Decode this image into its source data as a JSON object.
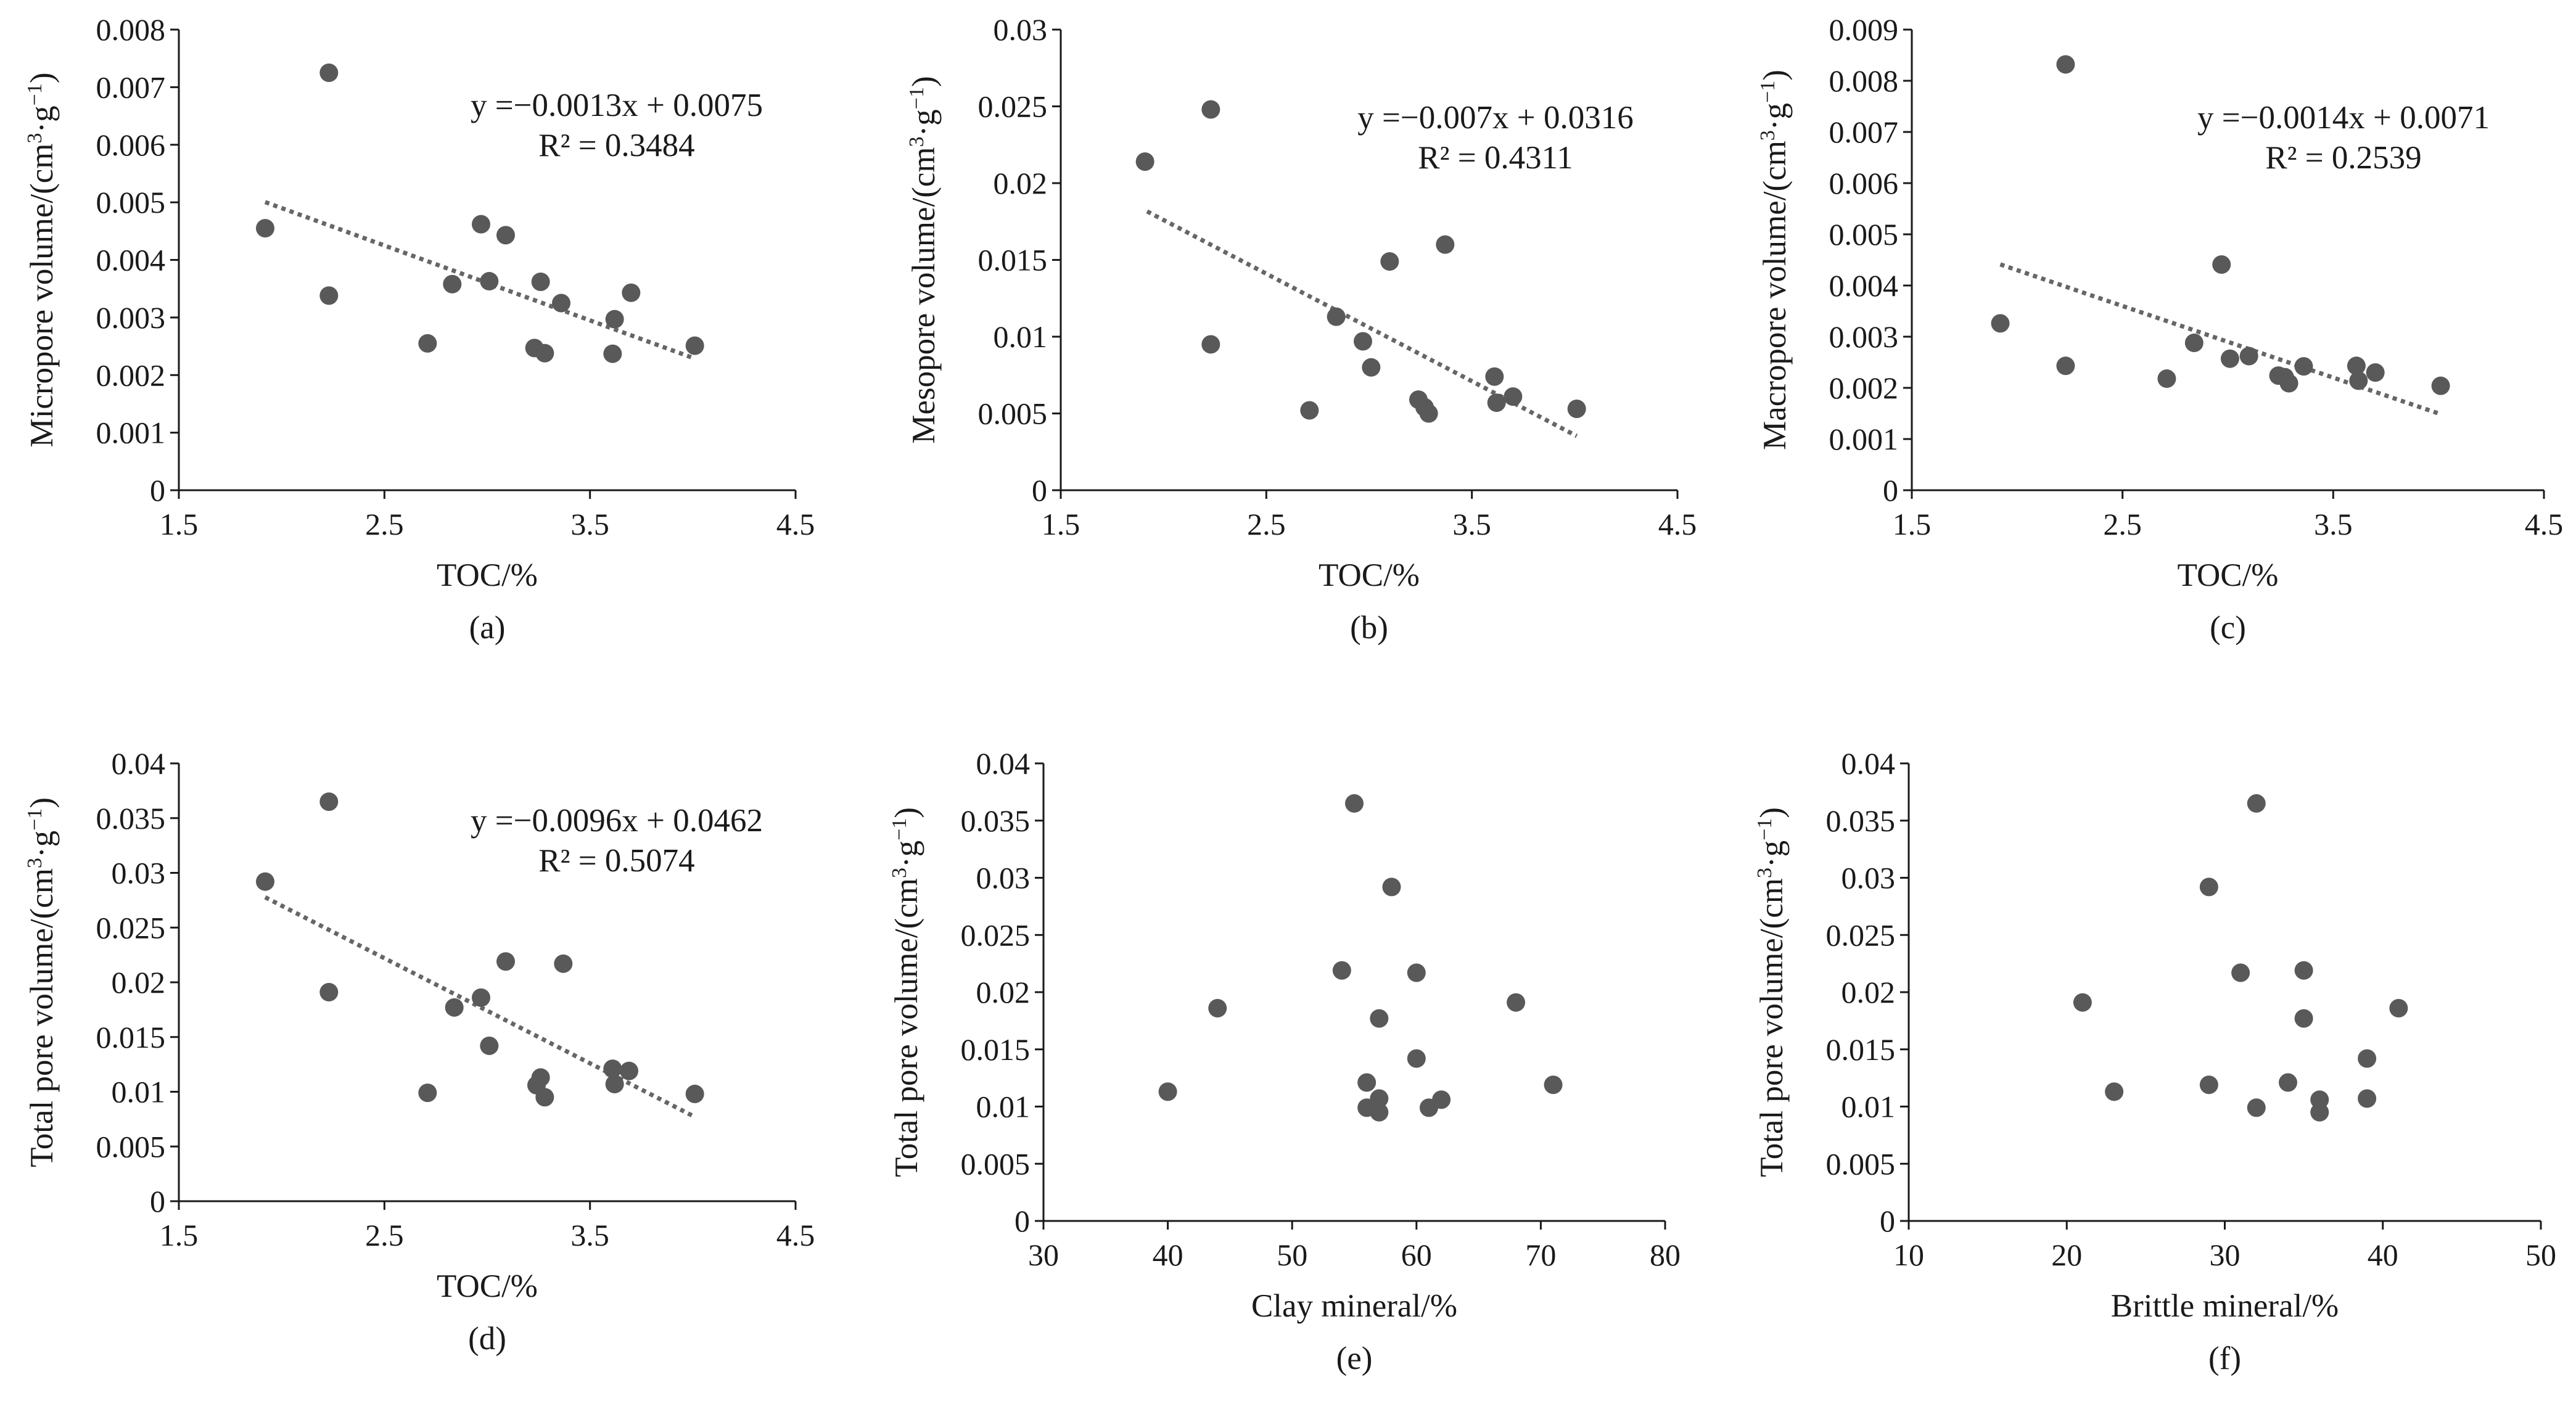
{
  "figure": {
    "background": "#ffffff",
    "point_color": "#595959",
    "trend_color": "#666666"
  },
  "chart_data": [
    {
      "id": "a",
      "type": "scatter",
      "caption": "(a)",
      "xlabel": "TOC/%",
      "ylabel_main": "Micropore volume/(cm",
      "ylabel_sup1": "3",
      "ylabel_mid": "·g",
      "ylabel_sup2": "−1",
      "ylabel_end": ")",
      "xlim": [
        1.5,
        4.5
      ],
      "ylim": [
        0,
        0.008
      ],
      "xticks": [
        "1.5",
        "2.5",
        "3.5",
        "4.5"
      ],
      "xtick_values": [
        1.5,
        2.5,
        3.5,
        4.5
      ],
      "yticks": [
        "0",
        "0.001",
        "0.002",
        "0.003",
        "0.004",
        "0.005",
        "0.006",
        "0.007",
        "0.008"
      ],
      "ytick_values": [
        0,
        0.001,
        0.002,
        0.003,
        0.004,
        0.005,
        0.006,
        0.007,
        0.008
      ],
      "points": [
        [
          1.92,
          0.00455
        ],
        [
          2.23,
          0.00725
        ],
        [
          2.23,
          0.00338
        ],
        [
          2.71,
          0.00255
        ],
        [
          2.83,
          0.00358
        ],
        [
          2.97,
          0.00462
        ],
        [
          3.01,
          0.00363
        ],
        [
          3.09,
          0.00443
        ],
        [
          3.23,
          0.00247
        ],
        [
          3.26,
          0.00362
        ],
        [
          3.28,
          0.00238
        ],
        [
          3.36,
          0.00325
        ],
        [
          3.61,
          0.00237
        ],
        [
          3.62,
          0.00297
        ],
        [
          3.7,
          0.00343
        ],
        [
          4.01,
          0.00251
        ]
      ],
      "trendline": {
        "slope": -0.0013,
        "intercept": 0.0075,
        "x_range": [
          1.92,
          4.01
        ]
      },
      "equation": "y =−0.0013x + 0.0075",
      "r2": "R² = 0.3484"
    },
    {
      "id": "b",
      "type": "scatter",
      "caption": "(b)",
      "xlabel": "TOC/%",
      "ylabel_main": "Mesopore volume/(cm",
      "ylabel_sup1": "3",
      "ylabel_mid": "·g",
      "ylabel_sup2": "−1",
      "ylabel_end": ")",
      "xlim": [
        1.5,
        4.5
      ],
      "ylim": [
        0,
        0.03
      ],
      "xticks": [
        "1.5",
        "2.5",
        "3.5",
        "4.5"
      ],
      "xtick_values": [
        1.5,
        2.5,
        3.5,
        4.5
      ],
      "yticks": [
        "0",
        "0.005",
        "0.01",
        "0.015",
        "0.02",
        "0.025",
        "0.03"
      ],
      "ytick_values": [
        0,
        0.005,
        0.01,
        0.015,
        0.02,
        0.025,
        0.03
      ],
      "points": [
        [
          1.91,
          0.0214
        ],
        [
          2.23,
          0.0248
        ],
        [
          2.23,
          0.0095
        ],
        [
          2.71,
          0.0052
        ],
        [
          2.84,
          0.0113
        ],
        [
          2.97,
          0.0097
        ],
        [
          3.01,
          0.008
        ],
        [
          3.1,
          0.0149
        ],
        [
          3.24,
          0.0059
        ],
        [
          3.27,
          0.0054
        ],
        [
          3.29,
          0.005
        ],
        [
          3.37,
          0.016
        ],
        [
          3.61,
          0.0074
        ],
        [
          3.62,
          0.0057
        ],
        [
          3.7,
          0.0061
        ],
        [
          4.01,
          0.0053
        ]
      ],
      "trendline": {
        "slope": -0.007,
        "intercept": 0.0316,
        "x_range": [
          1.92,
          4.01
        ]
      },
      "equation": "y =−0.007x + 0.0316",
      "r2": "R² = 0.4311"
    },
    {
      "id": "c",
      "type": "scatter",
      "caption": "(c)",
      "xlabel": "TOC/%",
      "ylabel_main": "Macropore volume/(cm",
      "ylabel_sup1": "3",
      "ylabel_mid": "·g",
      "ylabel_sup2": "−1",
      "ylabel_end": ")",
      "xlim": [
        1.5,
        4.5
      ],
      "ylim": [
        0,
        0.009
      ],
      "xticks": [
        "1.5",
        "2.5",
        "3.5",
        "4.5"
      ],
      "xtick_values": [
        1.5,
        2.5,
        3.5,
        4.5
      ],
      "yticks": [
        "0",
        "0.001",
        "0.002",
        "0.003",
        "0.004",
        "0.005",
        "0.006",
        "0.007",
        "0.008",
        "0.009"
      ],
      "ytick_values": [
        0,
        0.001,
        0.002,
        0.003,
        0.004,
        0.005,
        0.006,
        0.007,
        0.008,
        0.009
      ],
      "points": [
        [
          1.92,
          0.00326
        ],
        [
          2.23,
          0.00832
        ],
        [
          2.23,
          0.00243
        ],
        [
          2.71,
          0.00218
        ],
        [
          2.84,
          0.00288
        ],
        [
          2.97,
          0.00441
        ],
        [
          3.01,
          0.00257
        ],
        [
          3.1,
          0.00262
        ],
        [
          3.24,
          0.00224
        ],
        [
          3.27,
          0.00221
        ],
        [
          3.29,
          0.00209
        ],
        [
          3.36,
          0.00242
        ],
        [
          3.61,
          0.00243
        ],
        [
          3.62,
          0.00214
        ],
        [
          3.7,
          0.0023
        ],
        [
          4.01,
          0.00204
        ]
      ],
      "trendline": {
        "slope": -0.0014,
        "intercept": 0.0071,
        "x_range": [
          1.92,
          4.01
        ]
      },
      "equation": "y =−0.0014x + 0.0071",
      "r2": "R² = 0.2539"
    },
    {
      "id": "d",
      "type": "scatter",
      "caption": "(d)",
      "xlabel": "TOC/%",
      "ylabel_main": "Total pore volume/(cm",
      "ylabel_sup1": "3",
      "ylabel_mid": "·g",
      "ylabel_sup2": "−1",
      "ylabel_end": ")",
      "xlim": [
        1.5,
        4.5
      ],
      "ylim": [
        0,
        0.04
      ],
      "xticks": [
        "1.5",
        "2.5",
        "3.5",
        "4.5"
      ],
      "xtick_values": [
        1.5,
        2.5,
        3.5,
        4.5
      ],
      "yticks": [
        "0",
        "0.005",
        "0.01",
        "0.015",
        "0.02",
        "0.025",
        "0.03",
        "0.035",
        "0.04"
      ],
      "ytick_values": [
        0,
        0.005,
        0.01,
        0.015,
        0.02,
        0.025,
        0.03,
        0.035,
        0.04
      ],
      "points": [
        [
          1.92,
          0.0292
        ],
        [
          2.23,
          0.0365
        ],
        [
          2.23,
          0.0191
        ],
        [
          2.71,
          0.0099
        ],
        [
          2.84,
          0.0177
        ],
        [
          2.97,
          0.0186
        ],
        [
          3.01,
          0.0142
        ],
        [
          3.09,
          0.0219
        ],
        [
          3.24,
          0.0106
        ],
        [
          3.26,
          0.0113
        ],
        [
          3.28,
          0.0095
        ],
        [
          3.37,
          0.0217
        ],
        [
          3.61,
          0.0121
        ],
        [
          3.62,
          0.0107
        ],
        [
          3.69,
          0.0119
        ],
        [
          4.01,
          0.0098
        ]
      ],
      "trendline": {
        "slope": -0.0096,
        "intercept": 0.0462,
        "x_range": [
          1.92,
          4.01
        ]
      },
      "equation": "y =−0.0096x + 0.0462",
      "r2": "R² = 0.5074"
    },
    {
      "id": "e",
      "type": "scatter",
      "caption": "(e)",
      "xlabel": "Clay mineral/%",
      "ylabel_main": "Total pore volume/(cm",
      "ylabel_sup1": "3",
      "ylabel_mid": "·g",
      "ylabel_sup2": "−1",
      "ylabel_end": ")",
      "xlim": [
        30,
        80
      ],
      "ylim": [
        0,
        0.04
      ],
      "xticks": [
        "30",
        "40",
        "50",
        "60",
        "70",
        "80"
      ],
      "xtick_values": [
        30,
        40,
        50,
        60,
        70,
        80
      ],
      "yticks": [
        "0",
        "0.005",
        "0.01",
        "0.015",
        "0.02",
        "0.025",
        "0.03",
        "0.035",
        "0.04"
      ],
      "ytick_values": [
        0,
        0.005,
        0.01,
        0.015,
        0.02,
        0.025,
        0.03,
        0.035,
        0.04
      ],
      "points": [
        [
          40,
          0.0113
        ],
        [
          44,
          0.0186
        ],
        [
          54,
          0.0219
        ],
        [
          55,
          0.0365
        ],
        [
          56,
          0.0121
        ],
        [
          56,
          0.0099
        ],
        [
          57,
          0.0107
        ],
        [
          57,
          0.0095
        ],
        [
          57,
          0.0177
        ],
        [
          58,
          0.0292
        ],
        [
          60,
          0.0217
        ],
        [
          60,
          0.0142
        ],
        [
          61,
          0.0099
        ],
        [
          62,
          0.0106
        ],
        [
          68,
          0.0191
        ],
        [
          71,
          0.0119
        ]
      ]
    },
    {
      "id": "f",
      "type": "scatter",
      "caption": "(f)",
      "xlabel": "Brittle mineral/%",
      "ylabel_main": "Total pore volume/(cm",
      "ylabel_sup1": "3",
      "ylabel_mid": "·g",
      "ylabel_sup2": "−1",
      "ylabel_end": ")",
      "xlim": [
        10,
        50
      ],
      "ylim": [
        0,
        0.04
      ],
      "xticks": [
        "10",
        "20",
        "30",
        "40",
        "50"
      ],
      "xtick_values": [
        10,
        20,
        30,
        40,
        50
      ],
      "yticks": [
        "0",
        "0.005",
        "0.01",
        "0.015",
        "0.02",
        "0.025",
        "0.03",
        "0.035",
        "0.04"
      ],
      "ytick_values": [
        0,
        0.005,
        0.01,
        0.015,
        0.02,
        0.025,
        0.03,
        0.035,
        0.04
      ],
      "points": [
        [
          21,
          0.0191
        ],
        [
          23,
          0.0113
        ],
        [
          29,
          0.0292
        ],
        [
          29,
          0.0119
        ],
        [
          31,
          0.0217
        ],
        [
          32,
          0.0365
        ],
        [
          32,
          0.0099
        ],
        [
          34,
          0.0121
        ],
        [
          35,
          0.0219
        ],
        [
          35,
          0.0177
        ],
        [
          36,
          0.0106
        ],
        [
          36,
          0.0095
        ],
        [
          39,
          0.0142
        ],
        [
          39,
          0.0107
        ],
        [
          41,
          0.0186
        ]
      ]
    }
  ]
}
